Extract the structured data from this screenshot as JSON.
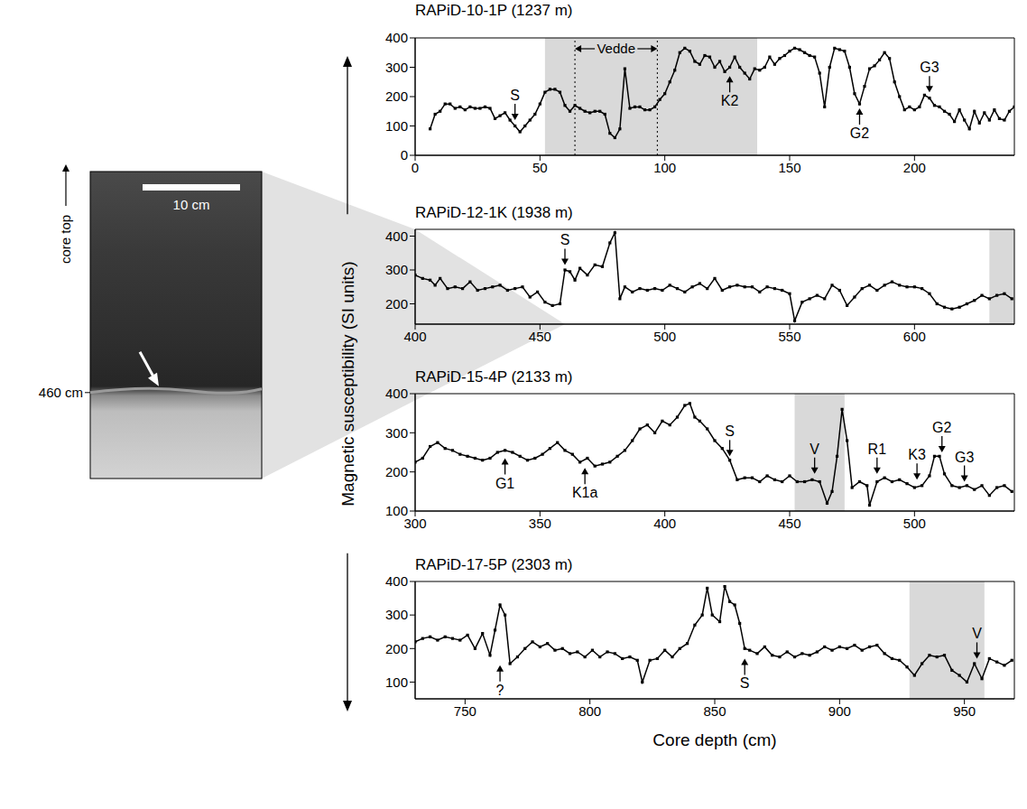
{
  "chart_data": [
    {
      "type": "line",
      "title": "RAPiD-10-1P (1237 m)",
      "color": "#000000",
      "marker": "square",
      "grid": false,
      "x": [
        6,
        8,
        10,
        12,
        14,
        16,
        18,
        20,
        22,
        24,
        26,
        28,
        30,
        32,
        34,
        36,
        38,
        40,
        42,
        44,
        46,
        48,
        50,
        52,
        54,
        56,
        58,
        60,
        62,
        64,
        66,
        68,
        70,
        72,
        74,
        76,
        78,
        80,
        82,
        84,
        86,
        88,
        90,
        92,
        94,
        96,
        98,
        100,
        102,
        104,
        106,
        108,
        110,
        112,
        114,
        116,
        118,
        120,
        122,
        124,
        126,
        128,
        130,
        132,
        134,
        136,
        138,
        140,
        142,
        144,
        146,
        148,
        150,
        152,
        154,
        156,
        158,
        160,
        162,
        164,
        166,
        168,
        170,
        172,
        174,
        176,
        178,
        180,
        182,
        184,
        186,
        188,
        190,
        192,
        194,
        196,
        198,
        200,
        202,
        204,
        206,
        208,
        210,
        212,
        214,
        216,
        218,
        220,
        222,
        224,
        226,
        228,
        230,
        232,
        234,
        236,
        238,
        240
      ],
      "values": [
        90,
        140,
        150,
        175,
        175,
        160,
        165,
        155,
        165,
        160,
        160,
        165,
        160,
        125,
        135,
        145,
        120,
        100,
        80,
        100,
        120,
        140,
        175,
        215,
        225,
        225,
        215,
        170,
        150,
        170,
        160,
        150,
        145,
        150,
        150,
        140,
        75,
        60,
        90,
        295,
        160,
        165,
        165,
        155,
        155,
        165,
        190,
        210,
        250,
        290,
        350,
        365,
        355,
        320,
        310,
        340,
        335,
        300,
        320,
        285,
        300,
        335,
        300,
        280,
        260,
        295,
        290,
        300,
        335,
        310,
        330,
        340,
        355,
        365,
        360,
        350,
        340,
        335,
        280,
        165,
        300,
        365,
        360,
        355,
        300,
        210,
        175,
        235,
        295,
        305,
        325,
        350,
        330,
        250,
        200,
        155,
        165,
        155,
        165,
        205,
        195,
        170,
        165,
        150,
        140,
        115,
        155,
        120,
        90,
        150,
        110,
        145,
        120,
        155,
        125,
        120,
        150,
        165
      ],
      "xlim": [
        0,
        240
      ],
      "xticks": [
        0,
        50,
        100,
        150,
        200
      ],
      "ylim": [
        0,
        400
      ],
      "yticks": [
        0,
        100,
        200,
        300,
        400
      ],
      "shaded": [
        [
          52,
          137
        ]
      ],
      "brackets": [
        {
          "text": "Vedde",
          "from": 64,
          "to": 97
        }
      ],
      "annotations": [
        {
          "text": "S",
          "x": 40,
          "y": 120
        },
        {
          "text": "K2",
          "x": 126,
          "y": 270
        },
        {
          "text": "G2",
          "x": 178,
          "y": 160
        },
        {
          "text": "G3",
          "x": 206,
          "y": 215
        }
      ]
    },
    {
      "type": "line",
      "title": "RAPiD-12-1K (1938 m)",
      "color": "#000000",
      "marker": "square",
      "grid": false,
      "x": [
        400,
        403,
        406,
        408,
        410,
        413,
        416,
        419,
        422,
        425,
        428,
        431,
        434,
        437,
        440,
        443,
        446,
        449,
        452,
        455,
        458,
        460,
        462,
        464,
        466,
        469,
        472,
        475,
        478,
        480,
        482,
        484,
        487,
        490,
        493,
        496,
        499,
        502,
        505,
        508,
        511,
        514,
        517,
        520,
        523,
        526,
        529,
        532,
        535,
        538,
        541,
        544,
        547,
        550,
        552,
        555,
        558,
        561,
        564,
        567,
        570,
        573,
        576,
        579,
        582,
        585,
        588,
        591,
        594,
        597,
        600,
        603,
        606,
        609,
        612,
        615,
        618,
        621,
        624,
        627,
        630,
        633,
        636,
        639
      ],
      "values": [
        285,
        275,
        270,
        255,
        275,
        245,
        250,
        245,
        265,
        240,
        245,
        250,
        255,
        240,
        245,
        250,
        220,
        235,
        205,
        195,
        200,
        300,
        295,
        270,
        305,
        285,
        315,
        310,
        380,
        410,
        215,
        250,
        235,
        245,
        240,
        245,
        240,
        255,
        245,
        235,
        250,
        260,
        245,
        275,
        240,
        250,
        255,
        250,
        250,
        235,
        250,
        245,
        240,
        230,
        150,
        205,
        215,
        225,
        215,
        255,
        240,
        195,
        220,
        245,
        255,
        240,
        255,
        265,
        255,
        250,
        250,
        245,
        230,
        200,
        190,
        185,
        190,
        200,
        210,
        225,
        215,
        225,
        230,
        215
      ],
      "xlim": [
        400,
        640
      ],
      "xticks": [
        400,
        450,
        500,
        550,
        600
      ],
      "ylim": [
        140,
        420
      ],
      "yticks": [
        200,
        300,
        400
      ],
      "shaded": [
        [
          630,
          640
        ]
      ],
      "brackets": [],
      "annotations": [
        {
          "text": "S",
          "x": 460,
          "y": 315
        }
      ]
    },
    {
      "type": "line",
      "title": "RAPiD-15-4P (2133 m)",
      "color": "#000000",
      "marker": "square",
      "grid": false,
      "x": [
        300,
        303,
        306,
        309,
        312,
        315,
        318,
        321,
        324,
        327,
        330,
        333,
        336,
        339,
        342,
        345,
        348,
        351,
        354,
        357,
        360,
        363,
        366,
        369,
        372,
        375,
        378,
        381,
        384,
        387,
        390,
        393,
        396,
        399,
        402,
        405,
        408,
        410,
        412,
        414,
        417,
        420,
        423,
        426,
        429,
        432,
        435,
        438,
        441,
        444,
        447,
        450,
        453,
        456,
        459,
        462,
        465,
        467,
        469,
        471,
        473,
        475,
        478,
        481,
        482,
        485,
        488,
        491,
        494,
        497,
        500,
        503,
        506,
        508,
        510,
        512,
        515,
        518,
        521,
        524,
        527,
        530,
        533,
        536,
        539
      ],
      "values": [
        225,
        235,
        265,
        275,
        260,
        255,
        245,
        240,
        235,
        230,
        235,
        250,
        255,
        250,
        240,
        230,
        235,
        245,
        260,
        275,
        255,
        245,
        225,
        235,
        215,
        220,
        225,
        240,
        255,
        280,
        310,
        320,
        300,
        330,
        320,
        340,
        370,
        375,
        340,
        330,
        310,
        280,
        260,
        230,
        180,
        185,
        185,
        175,
        190,
        180,
        175,
        190,
        175,
        175,
        180,
        175,
        120,
        150,
        240,
        360,
        280,
        160,
        175,
        165,
        115,
        175,
        185,
        175,
        180,
        170,
        160,
        165,
        190,
        240,
        240,
        195,
        165,
        160,
        165,
        155,
        165,
        140,
        160,
        165,
        150
      ],
      "xlim": [
        300,
        540
      ],
      "xticks": [
        300,
        350,
        400,
        450,
        500
      ],
      "ylim": [
        100,
        400
      ],
      "yticks": [
        100,
        200,
        300,
        400
      ],
      "shaded": [
        [
          452,
          472
        ]
      ],
      "brackets": [],
      "annotations": [
        {
          "text": "G1",
          "x": 336,
          "y": 235
        },
        {
          "text": "K1a",
          "x": 368,
          "y": 210
        },
        {
          "text": "S",
          "x": 426,
          "y": 240
        },
        {
          "text": "V",
          "x": 460,
          "y": 195
        },
        {
          "text": "R1",
          "x": 485,
          "y": 195
        },
        {
          "text": "K3",
          "x": 501,
          "y": 180
        },
        {
          "text": "G2",
          "x": 511,
          "y": 250
        },
        {
          "text": "G3",
          "x": 520,
          "y": 175
        }
      ]
    },
    {
      "type": "line",
      "title": "RAPiD-17-5P (2303 m)",
      "color": "#000000",
      "marker": "square",
      "grid": false,
      "x": [
        730,
        733,
        736,
        739,
        742,
        745,
        748,
        751,
        754,
        757,
        760,
        762,
        764,
        766,
        768,
        771,
        774,
        777,
        780,
        783,
        786,
        789,
        792,
        795,
        798,
        801,
        804,
        807,
        810,
        813,
        816,
        819,
        821,
        824,
        827,
        830,
        833,
        836,
        839,
        842,
        845,
        847,
        849,
        852,
        854,
        856,
        858,
        860,
        862,
        864,
        867,
        870,
        873,
        876,
        879,
        882,
        885,
        888,
        891,
        894,
        897,
        900,
        903,
        906,
        909,
        912,
        915,
        918,
        921,
        924,
        927,
        930,
        933,
        936,
        939,
        942,
        945,
        948,
        951,
        954,
        957,
        960,
        963,
        966,
        969
      ],
      "values": [
        220,
        230,
        235,
        225,
        235,
        230,
        225,
        240,
        200,
        245,
        180,
        255,
        330,
        300,
        155,
        175,
        200,
        220,
        205,
        215,
        195,
        200,
        185,
        190,
        175,
        195,
        175,
        190,
        185,
        170,
        175,
        165,
        100,
        165,
        170,
        195,
        175,
        200,
        215,
        270,
        300,
        380,
        300,
        280,
        385,
        340,
        330,
        275,
        200,
        195,
        185,
        205,
        180,
        175,
        190,
        175,
        185,
        180,
        190,
        205,
        195,
        205,
        200,
        210,
        195,
        205,
        210,
        185,
        170,
        165,
        145,
        120,
        155,
        180,
        175,
        180,
        135,
        120,
        100,
        155,
        110,
        170,
        160,
        150,
        165
      ],
      "xlim": [
        730,
        970
      ],
      "xticks": [
        750,
        800,
        850,
        900,
        950
      ],
      "ylim": [
        50,
        400
      ],
      "yticks": [
        100,
        200,
        300,
        400
      ],
      "shaded": [
        [
          928,
          958
        ]
      ],
      "brackets": [],
      "annotations": [
        {
          "text": "?",
          "x": 764,
          "y": 150
        },
        {
          "text": "S",
          "x": 862,
          "y": 170
        },
        {
          "text": "V",
          "x": 955,
          "y": 170
        }
      ]
    }
  ],
  "ylabel": "Magnetic susceptibility (SI units)",
  "xlabel": "Core depth (cm)",
  "core_image": {
    "top_label": "core top",
    "scale_bar": "10 cm",
    "depth_label": "460 cm"
  }
}
